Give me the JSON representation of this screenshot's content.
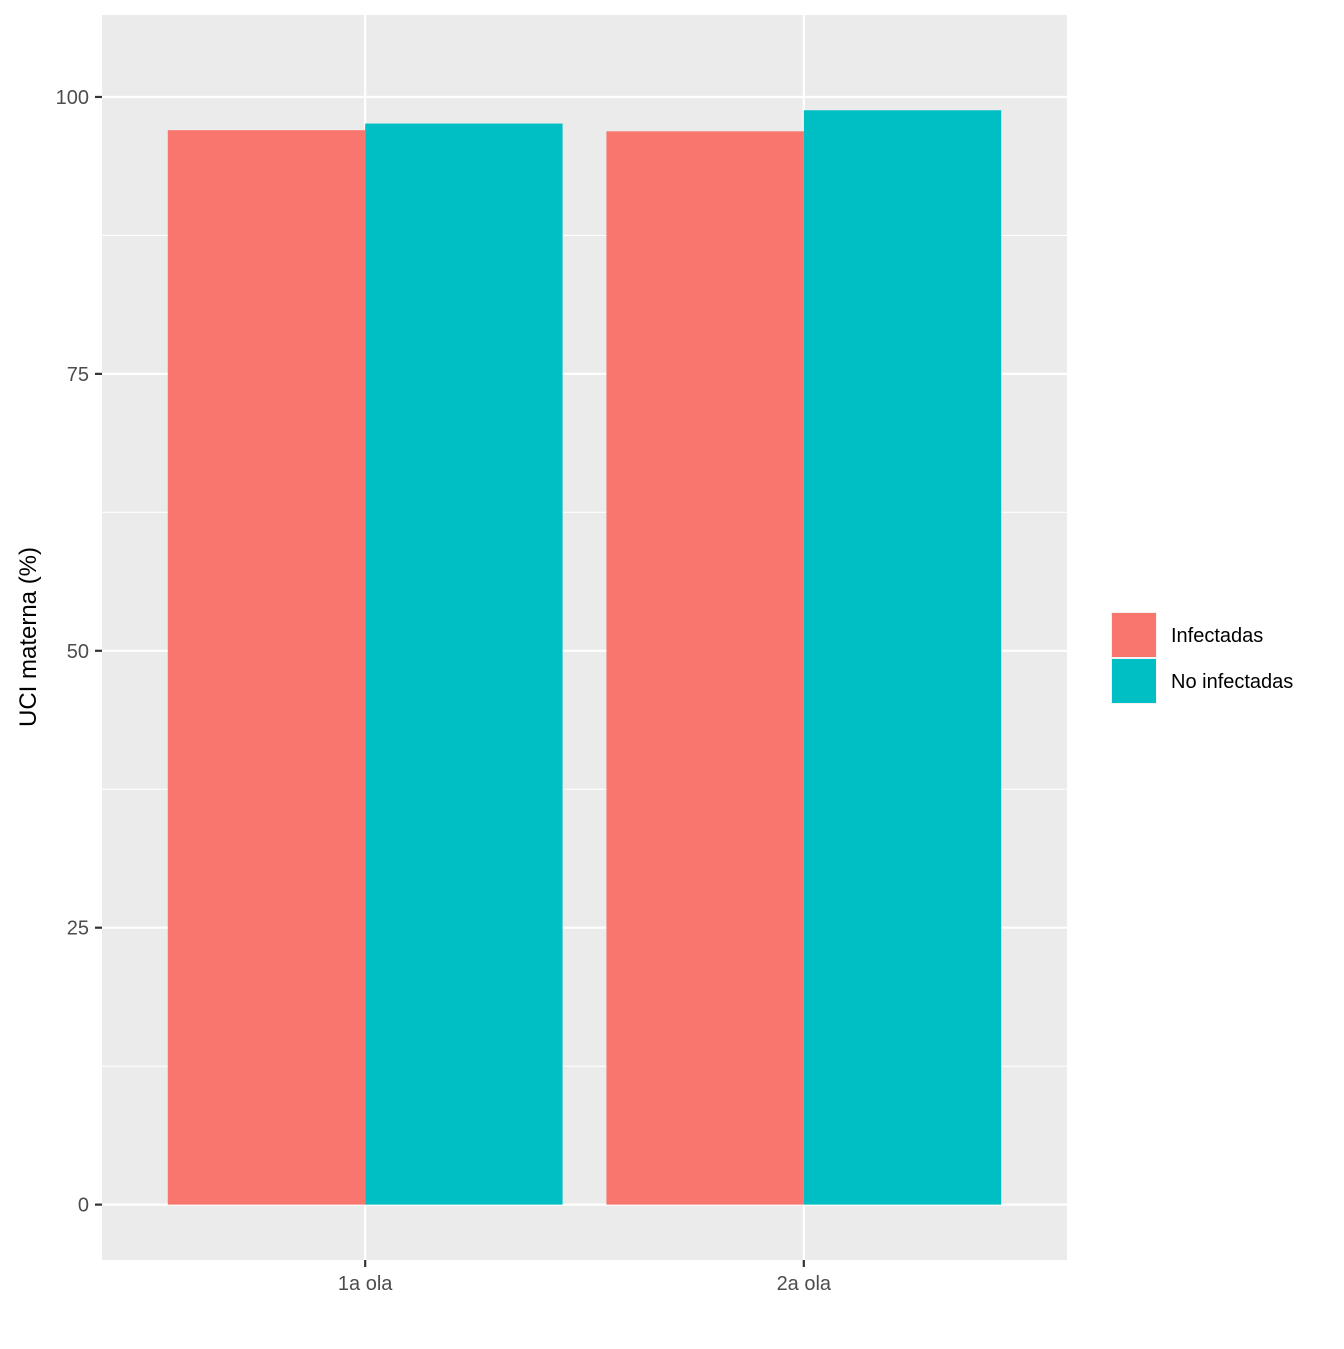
{
  "chart_data": {
    "type": "bar",
    "title": "",
    "xlabel": "",
    "ylabel": "UCI materna (%)",
    "categories": [
      "1a ola",
      "2a ola"
    ],
    "series": [
      {
        "name": "Infectadas",
        "values": [
          97.0,
          96.9
        ],
        "color": "#F8766D"
      },
      {
        "name": "No infectadas",
        "values": [
          97.6,
          98.8
        ],
        "color": "#00BFC4"
      }
    ],
    "ylim": [
      -5,
      107.4
    ],
    "yticks": [
      0,
      25,
      50,
      75,
      100
    ],
    "ytick_labels": [
      "0",
      "25",
      "50",
      "75",
      "100"
    ],
    "grid": true,
    "legend_position": "right"
  }
}
